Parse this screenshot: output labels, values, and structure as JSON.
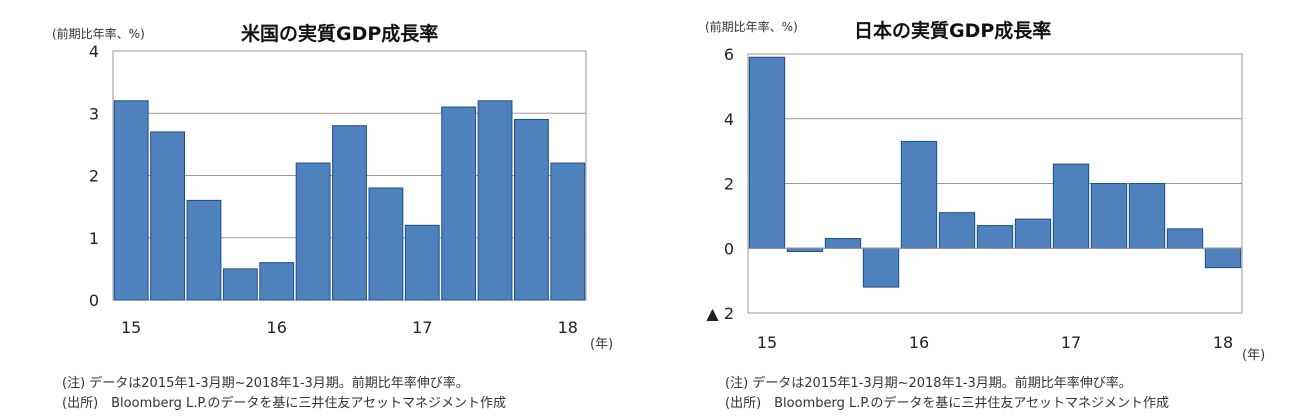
{
  "charts": [
    {
      "title": "米国の実質GDP成長率",
      "unit_label": "(前期比年率、%)",
      "x_unit": "(年)",
      "notes": [
        "(注) データは2015年1-3月期~2018年1-3月期。前期比年率伸び率。",
        "(出所)　Bloomberg L.P.のデータを基に三井住友アセットマネジメント作成"
      ]
    },
    {
      "title": "日本の実質GDP成長率",
      "unit_label": "(前期比年率、%)",
      "x_unit": "(年)",
      "notes": [
        "(注) データは2015年1-3月期~2018年1-3月期。前期比年率伸び率。",
        "(出所)　Bloomberg L.P.のデータを基に三井住友アセットマネジメント作成"
      ]
    }
  ],
  "chart_data": [
    {
      "type": "bar",
      "title": "米国の実質GDP成長率",
      "ylabel": "(前期比年率、%)",
      "xlabel": "(年)",
      "categories": [
        "2015 Q1",
        "2015 Q2",
        "2015 Q3",
        "2015 Q4",
        "2016 Q1",
        "2016 Q2",
        "2016 Q3",
        "2016 Q4",
        "2017 Q1",
        "2017 Q2",
        "2017 Q3",
        "2017 Q4",
        "2018 Q1"
      ],
      "values": [
        3.2,
        2.7,
        1.6,
        0.5,
        0.6,
        2.2,
        2.8,
        1.8,
        1.2,
        3.1,
        3.2,
        2.9,
        2.2
      ],
      "ylim": [
        0,
        4
      ],
      "yticks": [
        0,
        1,
        2,
        3,
        4
      ],
      "ytick_labels": [
        "0",
        "1",
        "2",
        "3",
        "4"
      ],
      "xtick_labels": [
        "15",
        "16",
        "17",
        "18"
      ],
      "bar_color": "#4f81bd",
      "grid": true
    },
    {
      "type": "bar",
      "title": "日本の実質GDP成長率",
      "ylabel": "(前期比年率、%)",
      "xlabel": "(年)",
      "categories": [
        "2015 Q1",
        "2015 Q2",
        "2015 Q3",
        "2015 Q4",
        "2016 Q1",
        "2016 Q2",
        "2016 Q3",
        "2016 Q4",
        "2017 Q1",
        "2017 Q2",
        "2017 Q3",
        "2017 Q4",
        "2018 Q1"
      ],
      "values": [
        5.9,
        -0.1,
        0.3,
        -1.2,
        3.3,
        1.1,
        0.7,
        0.9,
        2.6,
        2.0,
        2.0,
        0.6,
        -0.6
      ],
      "ylim": [
        -2,
        6
      ],
      "yticks": [
        -2,
        0,
        2,
        4,
        6
      ],
      "ytick_labels": [
        "▲ 2",
        "0",
        "2",
        "4",
        "6"
      ],
      "xtick_labels": [
        "15",
        "16",
        "17",
        "18"
      ],
      "bar_color": "#4f81bd",
      "grid": true
    }
  ]
}
